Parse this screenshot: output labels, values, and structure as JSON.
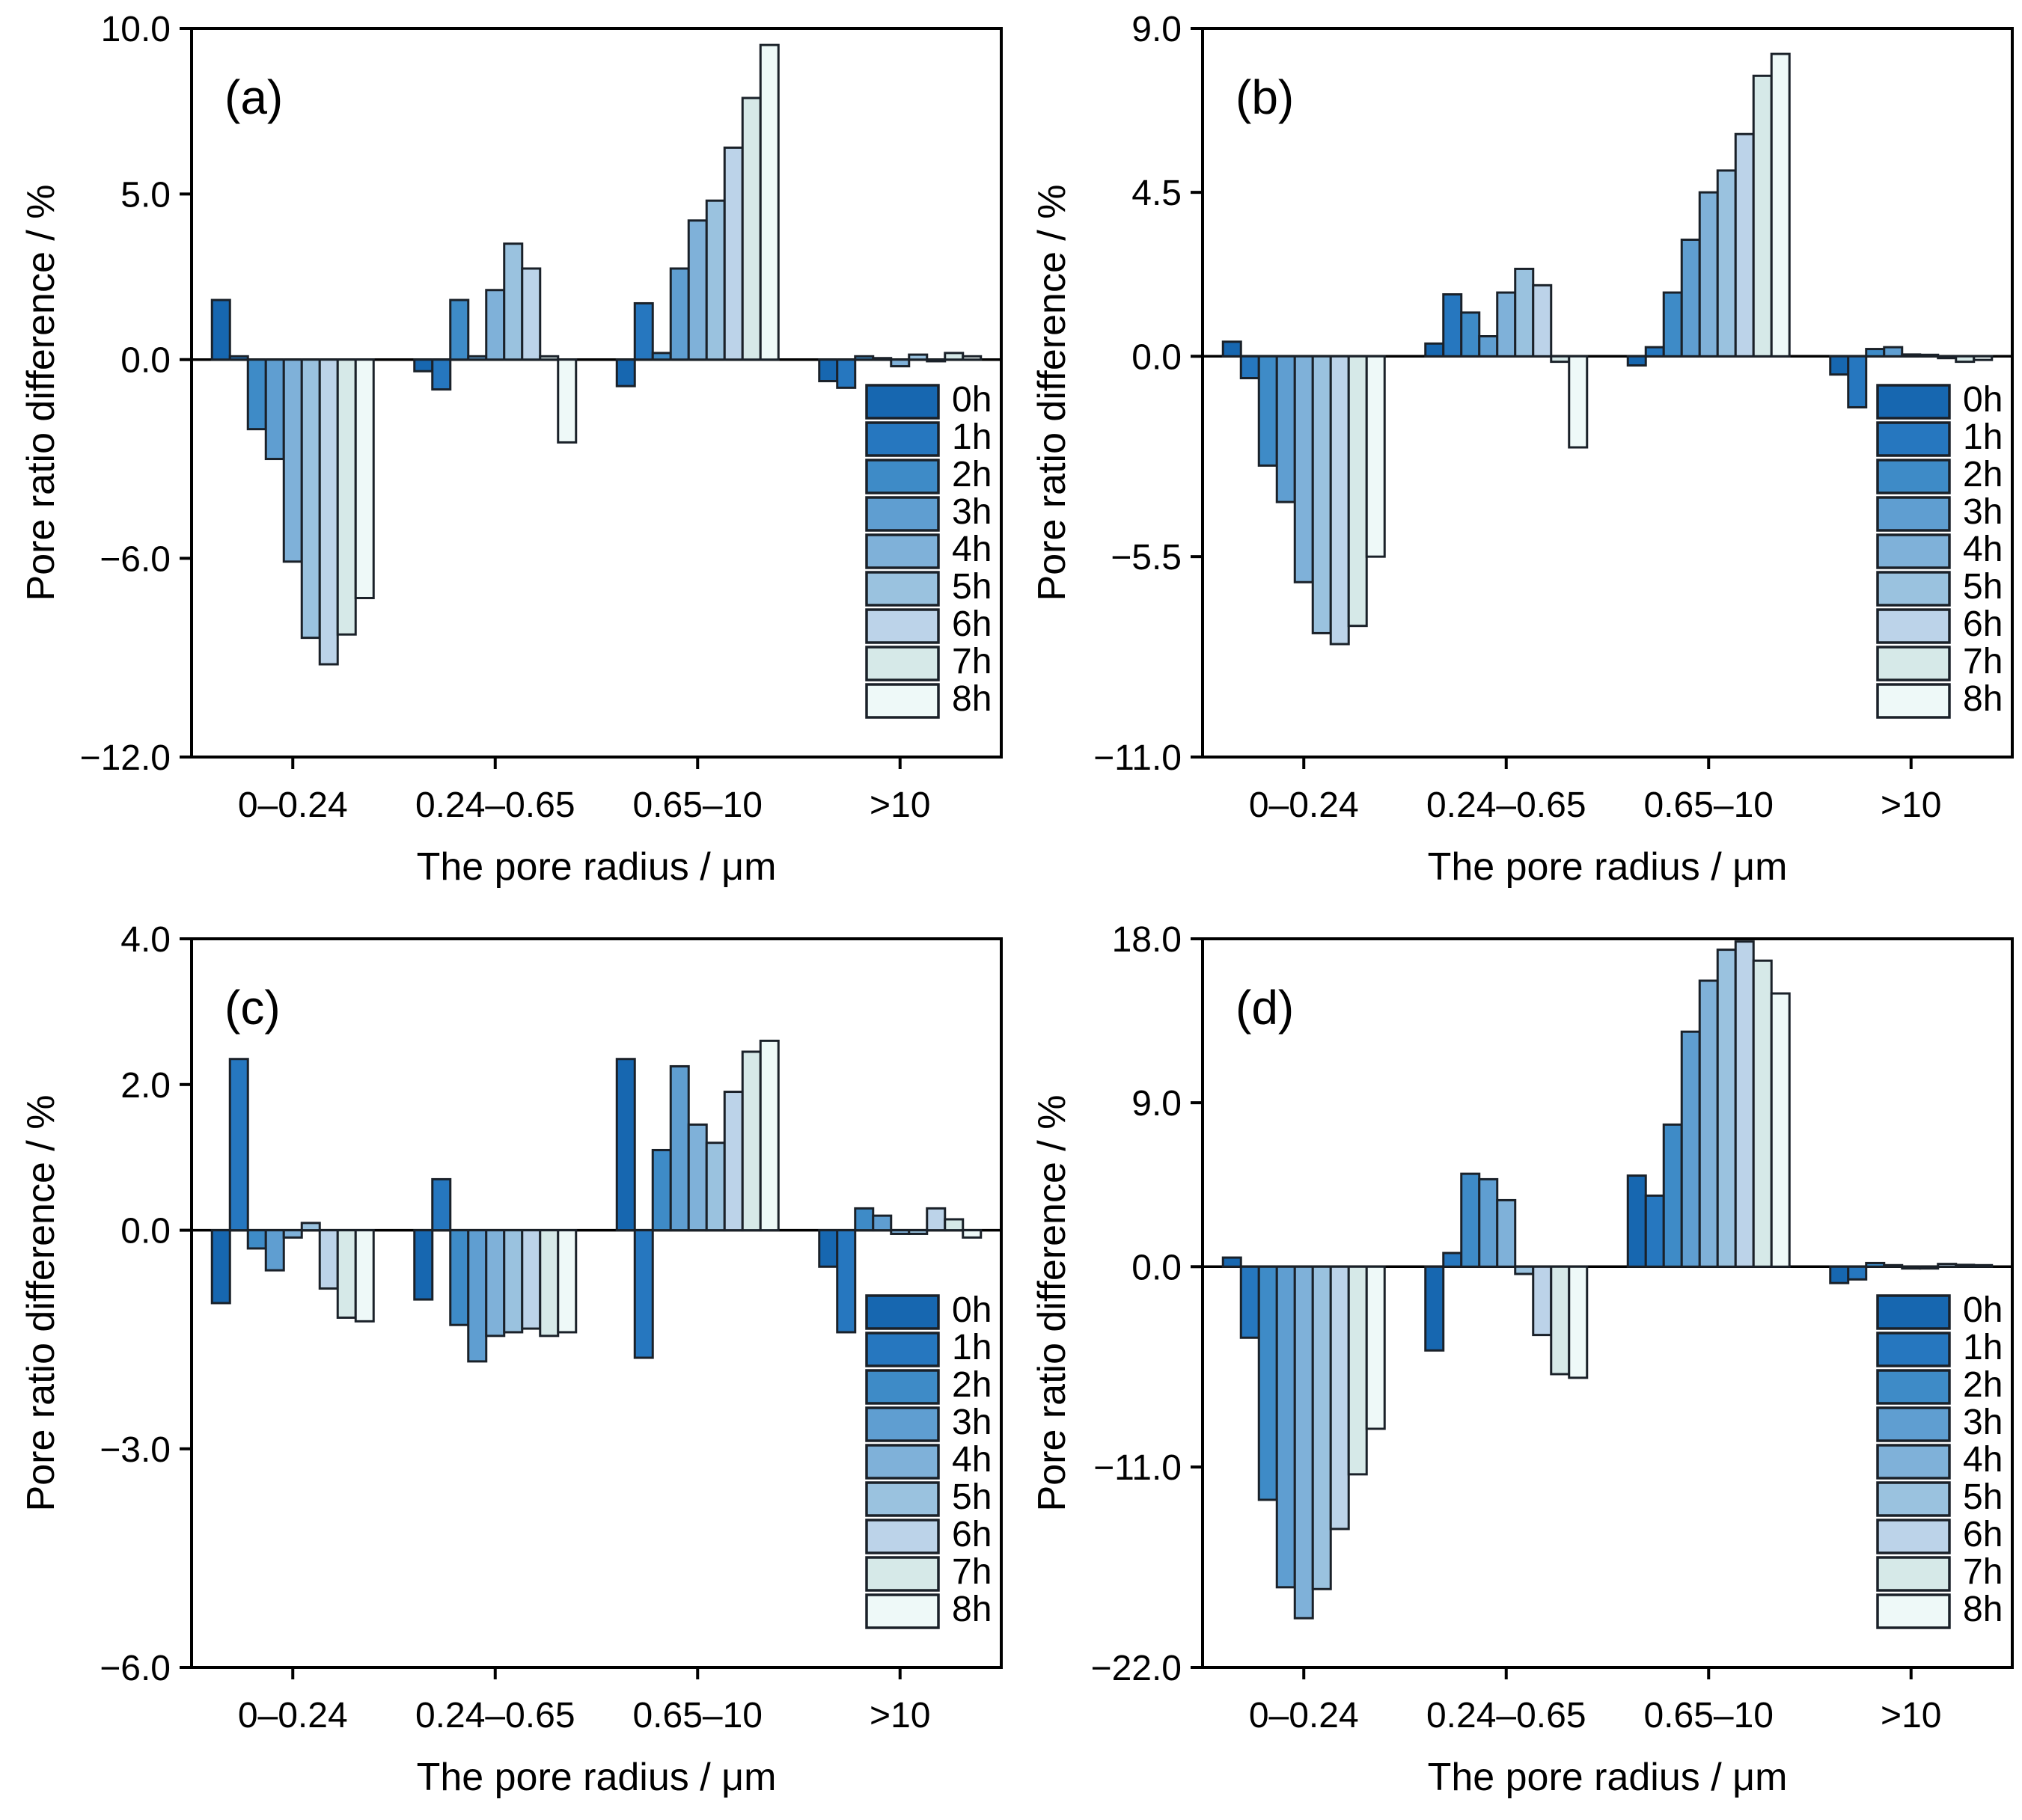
{
  "figure": {
    "background": "#ffffff",
    "axis_color": "#000000",
    "bar_outline_color": "#1a2129",
    "xlabel": "The pore radius / μm",
    "ylabel": "Pore ratio difference / %"
  },
  "legend": {
    "labels": [
      "0h",
      "1h",
      "2h",
      "3h",
      "4h",
      "5h",
      "6h",
      "7h",
      "8h"
    ],
    "colors": [
      "#1767b0",
      "#2677bf",
      "#3e8bc7",
      "#5f9ed1",
      "#7fb1d9",
      "#9ac2df",
      "#bcd3e9",
      "#d6e9e8",
      "#eef9f8"
    ],
    "position": "lower-right-inside"
  },
  "chart_data": [
    {
      "type": "bar",
      "label": "(a)",
      "xlabel": "The pore radius / μm",
      "ylabel": "Pore ratio difference / %",
      "categories": [
        "0–0.24",
        "0.24–0.65",
        "0.65–10",
        ">10"
      ],
      "ylim": [
        -12.0,
        10.0
      ],
      "yticks": [
        10.0,
        5.0,
        0.0,
        -6.0,
        -12.0
      ],
      "ytick_labels": [
        "10.0",
        "5.0",
        "0.0",
        "−6.0",
        "−12.0"
      ],
      "grid": false,
      "series": [
        {
          "name": "0h",
          "values": [
            1.8,
            -0.35,
            -0.8,
            -0.65
          ]
        },
        {
          "name": "1h",
          "values": [
            0.1,
            -0.9,
            1.7,
            -0.85
          ]
        },
        {
          "name": "2h",
          "values": [
            -2.1,
            1.8,
            0.2,
            0.1
          ]
        },
        {
          "name": "3h",
          "values": [
            -3.0,
            0.1,
            2.75,
            0.0
          ]
        },
        {
          "name": "4h",
          "values": [
            -6.1,
            2.1,
            4.2,
            -0.2
          ]
        },
        {
          "name": "5h",
          "values": [
            -8.4,
            3.5,
            4.8,
            0.15
          ]
        },
        {
          "name": "6h",
          "values": [
            -9.2,
            2.75,
            6.4,
            -0.05
          ]
        },
        {
          "name": "7h",
          "values": [
            -8.3,
            0.1,
            7.9,
            0.2
          ]
        },
        {
          "name": "8h",
          "values": [
            -7.2,
            -2.5,
            9.5,
            0.1
          ]
        }
      ]
    },
    {
      "type": "bar",
      "label": "(b)",
      "xlabel": "The pore radius / μm",
      "ylabel": "Pore ratio difference / %",
      "categories": [
        "0–0.24",
        "0.24–0.65",
        "0.65–10",
        ">10"
      ],
      "ylim": [
        -11.0,
        9.0
      ],
      "yticks": [
        9.0,
        4.5,
        0.0,
        -5.5,
        -11.0
      ],
      "ytick_labels": [
        "9.0",
        "4.5",
        "0.0",
        "−5.5",
        "−11.0"
      ],
      "grid": false,
      "series": [
        {
          "name": "0h",
          "values": [
            0.4,
            0.35,
            -0.25,
            -0.5
          ]
        },
        {
          "name": "1h",
          "values": [
            -0.6,
            1.7,
            0.25,
            -1.4
          ]
        },
        {
          "name": "2h",
          "values": [
            -3.0,
            1.2,
            1.75,
            0.2
          ]
        },
        {
          "name": "3h",
          "values": [
            -4.0,
            0.55,
            3.2,
            0.25
          ]
        },
        {
          "name": "4h",
          "values": [
            -6.2,
            1.75,
            4.5,
            0.05
          ]
        },
        {
          "name": "5h",
          "values": [
            -7.6,
            2.4,
            5.1,
            0.0
          ]
        },
        {
          "name": "6h",
          "values": [
            -7.9,
            1.95,
            6.1,
            -0.05
          ]
        },
        {
          "name": "7h",
          "values": [
            -7.4,
            -0.15,
            7.7,
            -0.15
          ]
        },
        {
          "name": "8h",
          "values": [
            -5.5,
            -2.5,
            8.3,
            -0.1
          ]
        }
      ]
    },
    {
      "type": "bar",
      "label": "(c)",
      "xlabel": "The pore radius / μm",
      "ylabel": "Pore ratio difference / %",
      "categories": [
        "0–0.24",
        "0.24–0.65",
        "0.65–10",
        ">10"
      ],
      "ylim": [
        -6.0,
        4.0
      ],
      "yticks": [
        4.0,
        2.0,
        0.0,
        -3.0,
        -6.0
      ],
      "ytick_labels": [
        "4.0",
        "2.0",
        "0.0",
        "−3.0",
        "−6.0"
      ],
      "grid": false,
      "series": [
        {
          "name": "0h",
          "values": [
            -1.0,
            -0.95,
            2.35,
            -0.5
          ]
        },
        {
          "name": "1h",
          "values": [
            2.35,
            0.7,
            -1.75,
            -1.4
          ]
        },
        {
          "name": "2h",
          "values": [
            -0.25,
            -1.3,
            1.1,
            0.3
          ]
        },
        {
          "name": "3h",
          "values": [
            -0.55,
            -1.8,
            2.25,
            0.2
          ]
        },
        {
          "name": "4h",
          "values": [
            -0.1,
            -1.45,
            1.45,
            -0.05
          ]
        },
        {
          "name": "5h",
          "values": [
            0.1,
            -1.4,
            1.2,
            -0.05
          ]
        },
        {
          "name": "6h",
          "values": [
            -0.8,
            -1.35,
            1.9,
            0.3
          ]
        },
        {
          "name": "7h",
          "values": [
            -1.2,
            -1.45,
            2.45,
            0.15
          ]
        },
        {
          "name": "8h",
          "values": [
            -1.25,
            -1.4,
            2.6,
            -0.1
          ]
        }
      ]
    },
    {
      "type": "bar",
      "label": "(d)",
      "xlabel": "The pore radius / μm",
      "ylabel": "Pore ratio difference / %",
      "categories": [
        "0–0.24",
        "0.24–0.65",
        "0.65–10",
        ">10"
      ],
      "ylim": [
        -22.0,
        18.0
      ],
      "yticks": [
        18.0,
        9.0,
        0.0,
        -11.0,
        -22.0
      ],
      "ytick_labels": [
        "18.0",
        "9.0",
        "0.0",
        "−11.0",
        "−22.0"
      ],
      "grid": false,
      "series": [
        {
          "name": "0h",
          "values": [
            0.5,
            -4.6,
            5.0,
            -0.9
          ]
        },
        {
          "name": "1h",
          "values": [
            -3.9,
            0.75,
            3.9,
            -0.7
          ]
        },
        {
          "name": "2h",
          "values": [
            -12.8,
            5.1,
            7.8,
            0.2
          ]
        },
        {
          "name": "3h",
          "values": [
            -17.6,
            4.8,
            12.9,
            0.0
          ]
        },
        {
          "name": "4h",
          "values": [
            -19.3,
            3.65,
            15.7,
            -0.1
          ]
        },
        {
          "name": "5h",
          "values": [
            -17.7,
            -0.4,
            17.4,
            -0.1
          ]
        },
        {
          "name": "6h",
          "values": [
            -14.4,
            -3.75,
            17.85,
            0.15
          ]
        },
        {
          "name": "7h",
          "values": [
            -11.4,
            -5.9,
            16.8,
            0.1
          ]
        },
        {
          "name": "8h",
          "values": [
            -8.9,
            -6.1,
            15.0,
            0.05
          ]
        }
      ]
    }
  ]
}
